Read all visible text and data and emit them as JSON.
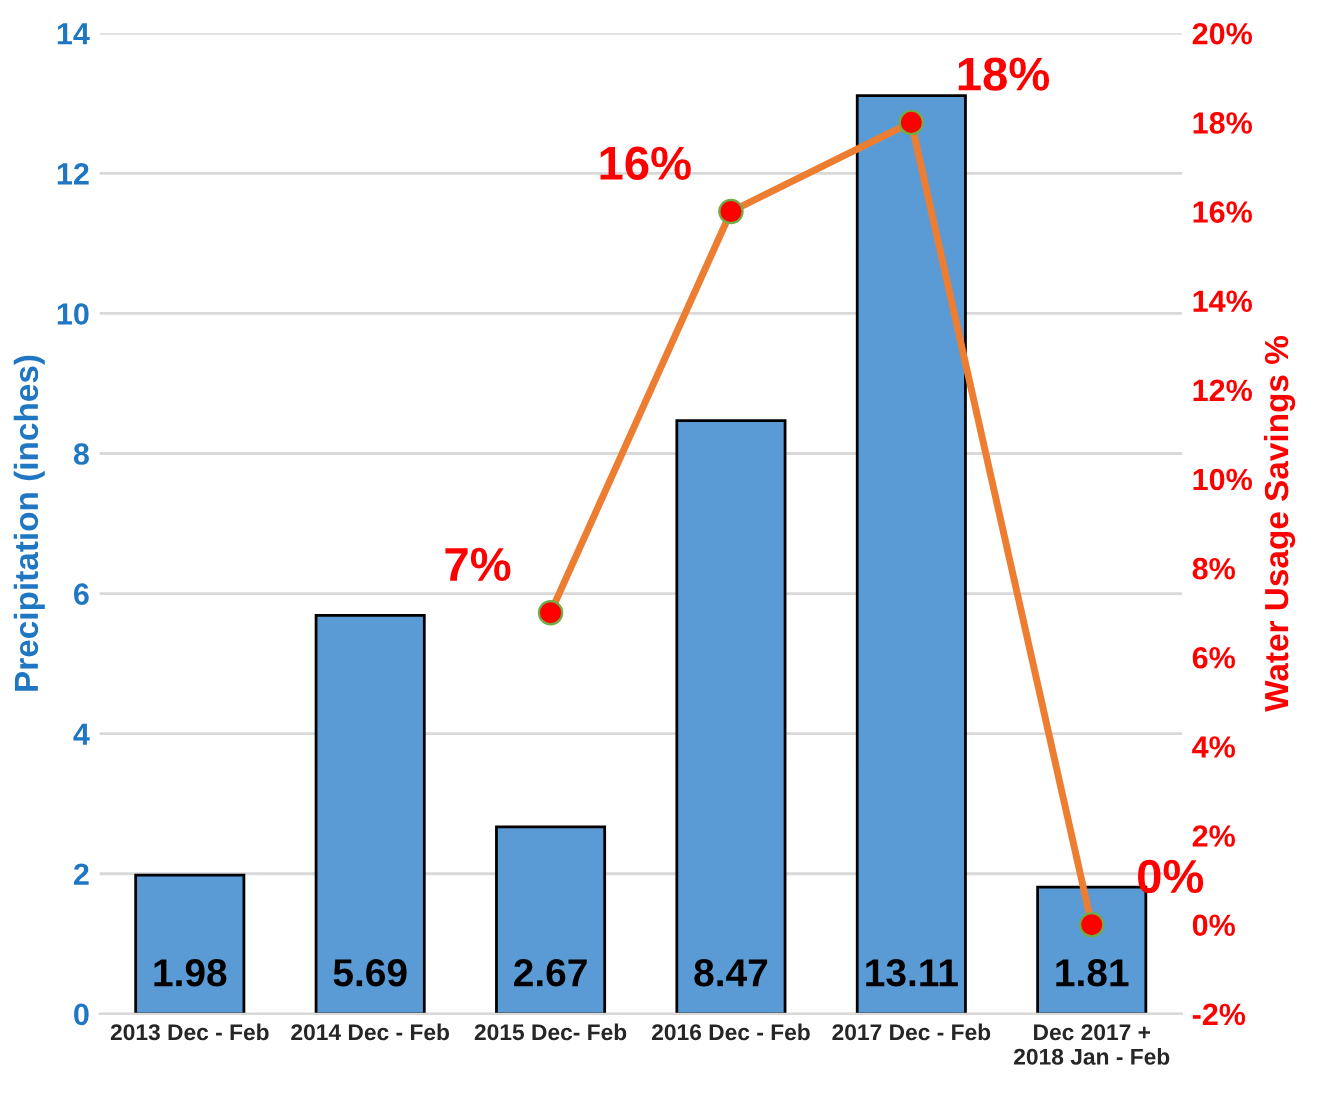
{
  "chart_data": {
    "type": "bar",
    "ylabel": "Precipitation (inches)",
    "y2label": "Water Usage Savings %",
    "categories": [
      "2013 Dec - Feb",
      "2014 Dec - Feb",
      "2015 Dec- Feb",
      "2016 Dec - Feb",
      "2017 Dec - Feb",
      "Dec 2017 +\n2018 Jan - Feb"
    ],
    "series": [
      {
        "color": "#5b9bd5",
        "values": [
          1.98,
          5.69,
          2.67,
          8.47,
          13.11,
          1.81
        ],
        "value_labels": [
          "1.98",
          "5.69",
          "2.67",
          "8.47",
          "13.11",
          "1.81"
        ]
      },
      {
        "type": "line",
        "axis": "y2",
        "color": "#ed7d31",
        "marker": "circle",
        "values": [
          null,
          null,
          7,
          16,
          18,
          0
        ],
        "value_labels": [
          null,
          null,
          "7%",
          "16%",
          "18%",
          "0%"
        ]
      }
    ],
    "ylim": [
      0,
      14
    ],
    "yticks": [
      0,
      2,
      4,
      6,
      8,
      10,
      12,
      14
    ],
    "y2lim": [
      -2,
      20
    ],
    "y2ticks": [
      {
        "value": -2,
        "label": "-2%"
      },
      {
        "value": 0,
        "label": "0%"
      },
      {
        "value": 2,
        "label": "2%"
      },
      {
        "value": 4,
        "label": "4%"
      },
      {
        "value": 6,
        "label": "6%"
      },
      {
        "value": 8,
        "label": "8%"
      },
      {
        "value": 10,
        "label": "10%"
      },
      {
        "value": 12,
        "label": "12%"
      },
      {
        "value": 14,
        "label": "14%"
      },
      {
        "value": 16,
        "label": "16%"
      },
      {
        "value": 18,
        "label": "18%"
      },
      {
        "value": 20,
        "label": "20%"
      }
    ],
    "grid": "y"
  }
}
